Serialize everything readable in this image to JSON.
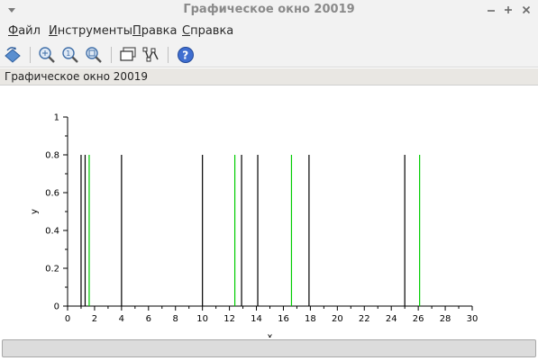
{
  "window": {
    "title": "Графическое окно 20019",
    "controls": [
      "window-menu-icon",
      "minimize-icon",
      "maximize-icon",
      "close-icon"
    ]
  },
  "menubar": {
    "items": [
      {
        "mnemonic": "Ф",
        "rest": "айл"
      },
      {
        "mnemonic": "И",
        "rest": "нструменты"
      },
      {
        "mnemonic": "П",
        "rest": "равка"
      },
      {
        "mnemonic": "С",
        "rest": "правка"
      }
    ]
  },
  "toolbar": {
    "icons": [
      "rotate-icon",
      "zoom-area-icon",
      "zoom-in-icon",
      "zoom-fit-icon",
      "datatip-icon",
      "edit-curve-icon",
      "help-icon"
    ]
  },
  "figure": {
    "label": "Графическое окно 20019"
  },
  "colors": {
    "series_black": "#000000",
    "series_green": "#00cc00"
  },
  "chart_data": {
    "type": "bar",
    "xlabel": "x",
    "ylabel": "y",
    "xlim": [
      0,
      30
    ],
    "ylim": [
      0,
      1
    ],
    "x_ticks": [
      "0",
      "2",
      "4",
      "6",
      "8",
      "10",
      "12",
      "14",
      "16",
      "18",
      "20",
      "22",
      "24",
      "26",
      "28",
      "30"
    ],
    "y_ticks": [
      "0",
      "0.2",
      "0.4",
      "0.6",
      "0.8",
      "1"
    ],
    "series": [
      {
        "color": "#000000",
        "x": [
          1,
          1.3,
          4,
          10,
          12.9,
          14.1,
          17.9,
          25
        ],
        "values": [
          0.8,
          0.8,
          0.8,
          0.8,
          0.8,
          0.8,
          0.8,
          0.8
        ]
      },
      {
        "color": "#00cc00",
        "x": [
          1.6,
          12.4,
          16.6,
          26.1
        ],
        "values": [
          0.8,
          0.8,
          0.8,
          0.8
        ]
      }
    ]
  }
}
